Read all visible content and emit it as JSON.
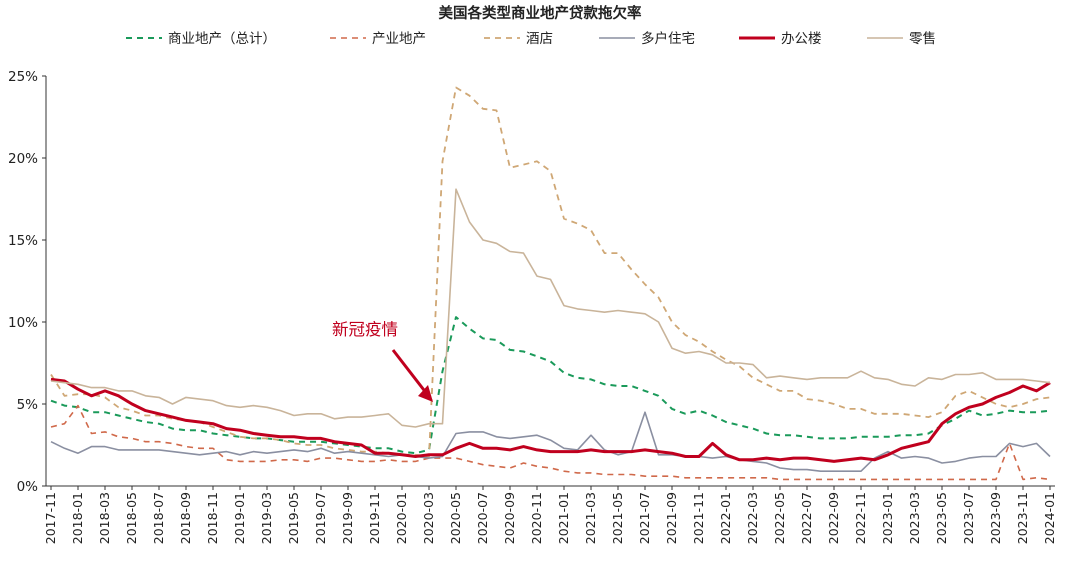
{
  "chart_data": {
    "type": "line",
    "title": "美国各类型商业地产贷款拖欠率",
    "ylim": [
      0,
      25
    ],
    "yticks": [
      0,
      5,
      10,
      15,
      20,
      25
    ],
    "ytick_labels": [
      "0%",
      "5%",
      "10%",
      "15%",
      "20%",
      "25%"
    ],
    "legend_position": "top",
    "grid": false,
    "x_tick_labels": [
      "2017-11",
      "2018-01",
      "2018-03",
      "2018-05",
      "2018-07",
      "2018-09",
      "2018-11",
      "2019-01",
      "2019-03",
      "2019-05",
      "2019-07",
      "2019-09",
      "2019-11",
      "2020-01",
      "2020-03",
      "2020-05",
      "2020-07",
      "2020-09",
      "2020-11",
      "2021-01",
      "2021-03",
      "2021-05",
      "2021-07",
      "2021-09",
      "2021-11",
      "2022-01",
      "2022-03",
      "2022-05",
      "2022-07",
      "2022-09",
      "2022-11",
      "2023-01",
      "2023-03",
      "2023-05",
      "2023-07",
      "2023-09",
      "2023-11",
      "2024-01"
    ],
    "x": [
      "2017-11",
      "2017-12",
      "2018-01",
      "2018-02",
      "2018-03",
      "2018-04",
      "2018-05",
      "2018-06",
      "2018-07",
      "2018-08",
      "2018-09",
      "2018-10",
      "2018-11",
      "2018-12",
      "2019-01",
      "2019-02",
      "2019-03",
      "2019-04",
      "2019-05",
      "2019-06",
      "2019-07",
      "2019-08",
      "2019-09",
      "2019-10",
      "2019-11",
      "2019-12",
      "2020-01",
      "2020-02",
      "2020-03",
      "2020-04",
      "2020-05",
      "2020-06",
      "2020-07",
      "2020-08",
      "2020-09",
      "2020-10",
      "2020-11",
      "2020-12",
      "2021-01",
      "2021-02",
      "2021-03",
      "2021-04",
      "2021-05",
      "2021-06",
      "2021-07",
      "2021-08",
      "2021-09",
      "2021-10",
      "2021-11",
      "2021-12",
      "2022-01",
      "2022-02",
      "2022-03",
      "2022-04",
      "2022-05",
      "2022-06",
      "2022-07",
      "2022-08",
      "2022-09",
      "2022-10",
      "2022-11",
      "2022-12",
      "2023-01",
      "2023-02",
      "2023-03",
      "2023-04",
      "2023-05",
      "2023-06",
      "2023-07",
      "2023-08",
      "2023-09",
      "2023-10",
      "2023-11",
      "2023-12",
      "2024-01"
    ],
    "series": [
      {
        "name": "商业地产（总计）",
        "color": "#1a9a5a",
        "dash": "6,5",
        "width": 2,
        "values": [
          5.2,
          4.9,
          4.8,
          4.5,
          4.5,
          4.3,
          4.1,
          3.9,
          3.8,
          3.5,
          3.4,
          3.4,
          3.2,
          3.1,
          3.0,
          2.9,
          2.9,
          2.8,
          2.7,
          2.7,
          2.7,
          2.6,
          2.5,
          2.4,
          2.3,
          2.3,
          2.1,
          2.0,
          2.2,
          7.0,
          10.3,
          9.6,
          9.0,
          8.9,
          8.3,
          8.2,
          7.9,
          7.6,
          6.9,
          6.6,
          6.5,
          6.2,
          6.1,
          6.1,
          5.8,
          5.5,
          4.7,
          4.4,
          4.6,
          4.3,
          3.9,
          3.7,
          3.5,
          3.2,
          3.1,
          3.1,
          3.0,
          2.9,
          2.9,
          2.9,
          3.0,
          3.0,
          3.0,
          3.1,
          3.1,
          3.2,
          3.7,
          4.1,
          4.6,
          4.3,
          4.4,
          4.6,
          4.5,
          4.5,
          4.6
        ]
      },
      {
        "name": "产业地产",
        "color": "#d0694a",
        "dash": "6,5",
        "width": 1.6,
        "values": [
          3.6,
          3.8,
          4.9,
          3.2,
          3.3,
          3.0,
          2.9,
          2.7,
          2.7,
          2.6,
          2.4,
          2.3,
          2.3,
          1.6,
          1.5,
          1.5,
          1.5,
          1.6,
          1.6,
          1.5,
          1.7,
          1.7,
          1.6,
          1.5,
          1.5,
          1.6,
          1.5,
          1.5,
          1.7,
          1.7,
          1.7,
          1.5,
          1.3,
          1.2,
          1.1,
          1.4,
          1.2,
          1.1,
          0.9,
          0.8,
          0.8,
          0.7,
          0.7,
          0.7,
          0.6,
          0.6,
          0.6,
          0.5,
          0.5,
          0.5,
          0.5,
          0.5,
          0.5,
          0.5,
          0.4,
          0.4,
          0.4,
          0.4,
          0.4,
          0.4,
          0.4,
          0.4,
          0.4,
          0.4,
          0.4,
          0.4,
          0.4,
          0.4,
          0.4,
          0.4,
          0.4,
          2.6,
          0.4,
          0.5,
          0.4
        ]
      },
      {
        "name": "酒店",
        "color": "#cfa775",
        "dash": "6,5",
        "width": 1.8,
        "values": [
          6.8,
          5.5,
          5.6,
          5.6,
          5.4,
          4.8,
          4.6,
          4.3,
          4.3,
          4.1,
          4.0,
          3.9,
          3.6,
          3.3,
          3.0,
          2.9,
          2.9,
          2.8,
          2.6,
          2.5,
          2.5,
          2.3,
          2.2,
          2.1,
          2.1,
          2.0,
          1.9,
          1.9,
          1.8,
          19.8,
          24.3,
          23.8,
          23.0,
          22.9,
          19.4,
          19.6,
          19.8,
          19.2,
          16.3,
          16.0,
          15.6,
          14.2,
          14.2,
          13.2,
          12.3,
          11.5,
          10.0,
          9.2,
          8.8,
          8.2,
          7.7,
          7.3,
          6.6,
          6.2,
          5.8,
          5.8,
          5.3,
          5.2,
          5.0,
          4.7,
          4.7,
          4.4,
          4.4,
          4.4,
          4.3,
          4.2,
          4.5,
          5.5,
          5.8,
          5.4,
          5.0,
          4.8,
          5.0,
          5.3,
          5.4
        ]
      },
      {
        "name": "多户住宅",
        "color": "#8a8fa1",
        "dash": "",
        "width": 1.6,
        "values": [
          2.7,
          2.3,
          2.0,
          2.4,
          2.4,
          2.2,
          2.2,
          2.2,
          2.2,
          2.1,
          2.0,
          1.9,
          2.0,
          2.1,
          1.9,
          2.1,
          2.0,
          2.1,
          2.2,
          2.1,
          2.3,
          2.0,
          2.1,
          2.0,
          1.9,
          1.8,
          1.9,
          1.8,
          1.7,
          1.8,
          3.2,
          3.3,
          3.3,
          3.0,
          2.9,
          3.0,
          3.1,
          2.8,
          2.3,
          2.2,
          3.1,
          2.2,
          1.9,
          2.1,
          4.5,
          1.9,
          1.9,
          1.8,
          1.8,
          1.7,
          1.8,
          1.6,
          1.5,
          1.4,
          1.1,
          1.0,
          1.0,
          0.9,
          0.9,
          0.9,
          0.9,
          1.7,
          2.1,
          1.7,
          1.8,
          1.7,
          1.4,
          1.5,
          1.7,
          1.8,
          1.8,
          2.6,
          2.4,
          2.6,
          1.8
        ]
      },
      {
        "name": "办公楼",
        "color": "#c0001e",
        "dash": "",
        "width": 3,
        "values": [
          6.5,
          6.4,
          5.9,
          5.5,
          5.8,
          5.5,
          5.0,
          4.6,
          4.4,
          4.2,
          4.0,
          3.9,
          3.8,
          3.5,
          3.4,
          3.2,
          3.1,
          3.0,
          3.0,
          2.9,
          2.9,
          2.7,
          2.6,
          2.5,
          2.0,
          2.0,
          1.9,
          1.8,
          1.9,
          1.9,
          2.3,
          2.6,
          2.3,
          2.3,
          2.2,
          2.4,
          2.2,
          2.1,
          2.1,
          2.1,
          2.2,
          2.1,
          2.1,
          2.1,
          2.2,
          2.1,
          2.0,
          1.8,
          1.8,
          2.6,
          1.9,
          1.6,
          1.6,
          1.7,
          1.6,
          1.7,
          1.7,
          1.6,
          1.5,
          1.6,
          1.7,
          1.6,
          1.9,
          2.3,
          2.5,
          2.7,
          3.8,
          4.4,
          4.8,
          5.0,
          5.4,
          5.7,
          6.1,
          5.8,
          6.3
        ]
      },
      {
        "name": "零售",
        "color": "#c9b49a",
        "dash": "",
        "width": 1.6,
        "values": [
          6.4,
          6.3,
          6.2,
          6.0,
          6.0,
          5.8,
          5.8,
          5.5,
          5.4,
          5.0,
          5.4,
          5.3,
          5.2,
          4.9,
          4.8,
          4.9,
          4.8,
          4.6,
          4.3,
          4.4,
          4.4,
          4.1,
          4.2,
          4.2,
          4.3,
          4.4,
          3.7,
          3.6,
          3.8,
          3.8,
          18.1,
          16.1,
          15.0,
          14.8,
          14.3,
          14.2,
          12.8,
          12.6,
          11.0,
          10.8,
          10.7,
          10.6,
          10.7,
          10.6,
          10.5,
          10.0,
          8.4,
          8.1,
          8.2,
          8.0,
          7.5,
          7.5,
          7.4,
          6.6,
          6.7,
          6.6,
          6.5,
          6.6,
          6.6,
          6.6,
          7.0,
          6.6,
          6.5,
          6.2,
          6.1,
          6.6,
          6.5,
          6.8,
          6.8,
          6.9,
          6.5,
          6.5,
          6.5,
          6.4,
          6.3
        ]
      }
    ],
    "annotations": [
      {
        "text": "新冠疫情",
        "color": "#c0001e",
        "x": "2020-03"
      }
    ]
  }
}
